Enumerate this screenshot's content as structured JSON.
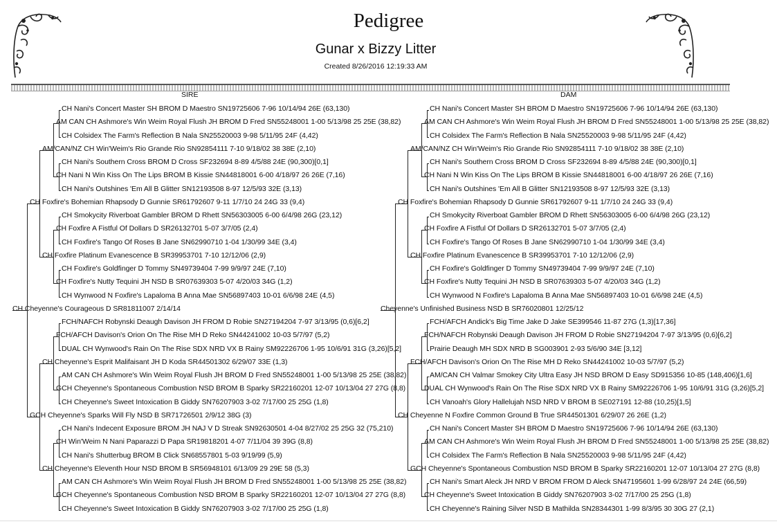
{
  "header": {
    "title": "Pedigree",
    "subtitle": "Gunar x Bizzy Litter",
    "created": "Created 8/26/2016 12:19:33 AM"
  },
  "columns": {
    "sire": "SIRE",
    "dam": "DAM"
  },
  "sire_tree": [
    "CH Nani's Concert Master SH BROM D Maestro SN19725606 7-96 10/14/94 26E (63,130)",
    "AM CAN CH Ashmore's Win Weim Royal Flush JH BROM D Fred SN55248001 1-00 5/13/98 25 25E (38,82)",
    "CH Colsidex The Farm's Reflection B Nala SN25520003 9-98 5/11/95 24F (4,42)",
    "AM/CAN/NZ CH Win'Weim's Rio Grande Rio SN92854111 7-10 9/18/02 38 38E (2,10)",
    "CH Nani's Southern Cross BROM D Cross SF232694 8-89 4/5/88 24E (90,300)[0,1]",
    "CH Nani N Win Kiss On The Lips BROM B Kissie SN44818001 6-00 4/18/97 26 26E (7,16)",
    "CH Nani's Outshines 'Em All B Glitter SN12193508 8-97 12/5/93 32E (3,13)",
    "CH Foxfire's Bohemian Rhapsody D Gunnie SR61792607 9-11 1/7/10 24 24G 33 (9,4)",
    "CH Smokycity Riverboat Gambler BROM D Rhett SN56303005 6-00 6/4/98 26G (23,12)",
    "CH Foxfire A Fistful Of Dollars D SR26132701 5-07 3/7/05 (2,4)",
    "CH Foxfire's Tango Of Roses B Jane SN62990710 1-04 1/30/99 34E (3,4)",
    "CH Foxfire Platinum Evanescence B SR39953701 7-10 12/12/06 (2,9)",
    "CH Foxfire's Goldfinger D Tommy SN49739404 7-99 9/9/97 24E (7,10)",
    "CH Foxfire's Nutty Tequini JH NSD B SR07639303 5-07 4/20/03 34G (1,2)",
    "CH Wynwood N Foxfire's Lapaloma B Anna Mae SN56897403 10-01 6/6/98 24E (4,5)",
    "CH Cheyenne's Courageous D SR81811007 2/14/14",
    "FCH/NAFCH Robynski Deaugh Davison JH FROM D Robie SN27194204 7-97 3/13/95 (0,6)[6,2]",
    "FCH/AFCH Davison's Orion On The Rise MH D Reko SN44241002 10-03 5/7/97 (5,2)",
    "DUAL CH Wynwood's Rain On The Rise SDX NRD VX B Rainy SM92226706 1-95 10/6/91 31G (3,26)[5,2]",
    "CH Cheyenne's Esprit Malifaisant JH D Koda SR44501302 6/29/07 33E (1,3)",
    "AM CAN CH Ashmore's Win Weim Royal Flush JH BROM D Fred SN55248001 1-00 5/13/98 25 25E (38,82)",
    "GCH Cheyenne's Spontaneous Combustion NSD BROM B Sparky SR22160201 12-07 10/13/04 27 27G (8,8)",
    "CH Cheyenne's Sweet Intoxication B Giddy SN76207903 3-02 7/17/00 25 25G (1,8)",
    "GCH Cheyenne's Sparks Will Fly NSD B SR71726501 2/9/12 38G (3)",
    "CH Nani's Indecent Exposure BROM JH NAJ V D Streak SN92630501 4-04 8/27/02 25 25G 32 (75,210)",
    "CH Win'Weim N Nani Paparazzi D Papa SR19818201 4-07 7/11/04 39 39G (8,8)",
    "CH Nani's Shutterbug BROM B Click SN68557801 5-03 9/19/99 (5,9)",
    "CH Cheyenne's Eleventh Hour NSD BROM B SR56948101 6/13/09 29 29E 58 (5,3)",
    "AM CAN CH Ashmore's Win Weim Royal Flush JH BROM D Fred SN55248001 1-00 5/13/98 25 25E (38,82)",
    "GCH Cheyenne's Spontaneous Combustion NSD BROM B Sparky SR22160201 12-07 10/13/04 27 27G (8,8)",
    "CH Cheyenne's Sweet Intoxication B Giddy SN76207903 3-02 7/17/00 25 25G (1,8)"
  ],
  "dam_tree": [
    "CH Nani's Concert Master SH BROM D Maestro SN19725606 7-96 10/14/94 26E (63,130)",
    "AM CAN CH Ashmore's Win Weim Royal Flush JH BROM D Fred SN55248001 1-00 5/13/98 25 25E (38,82)",
    "CH Colsidex The Farm's Reflection B Nala SN25520003 9-98 5/11/95 24F (4,42)",
    "AM/CAN/NZ CH Win'Weim's Rio Grande Rio SN92854111 7-10 9/18/02 38 38E (2,10)",
    "CH Nani's Southern Cross BROM D Cross SF232694 8-89 4/5/88 24E (90,300)[0,1]",
    "CH Nani N Win Kiss On The Lips BROM B Kissie SN44818001 6-00 4/18/97 26 26E (7,16)",
    "CH Nani's Outshines 'Em All B Glitter SN12193508 8-97 12/5/93 32E (3,13)",
    "CH Foxfire's Bohemian Rhapsody D Gunnie SR61792607 9-11 1/7/10 24 24G 33 (9,4)",
    "CH Smokycity Riverboat Gambler BROM D Rhett SN56303005 6-00 6/4/98 26G (23,12)",
    "CH Foxfire A Fistful Of Dollars D SR26132701 5-07 3/7/05 (2,4)",
    "CH Foxfire's Tango Of Roses B Jane SN62990710 1-04 1/30/99 34E (3,4)",
    "CH Foxfire Platinum Evanescence B SR39953701 7-10 12/12/06 (2,9)",
    "CH Foxfire's Goldfinger D Tommy SN49739404 7-99 9/9/97 24E (7,10)",
    "CH Foxfire's Nutty Tequini JH NSD B SR07639303 5-07 4/20/03 34G (1,2)",
    "CH Wynwood N Foxfire's Lapaloma B Anna Mae SN56897403 10-01 6/6/98 24E (4,5)",
    "Cheyenne's Unfinished Business NSD B SR76020801 12/25/12",
    "FCH/AFCH Andick's Big Time Jake D Jake SE399546 11-87 27G (1,3)[17,36]",
    "FCH/NAFCH Robynski Deaugh Davison JH FROM D Robie SN27194204 7-97 3/13/95 (0,6)[6,2]",
    "Prairie Deaugh MH SDX NRD B SG003901 2-93 5/6/90 34E [3,12]",
    "FCH/AFCH Davison's Orion On The Rise MH D Reko SN44241002 10-03 5/7/97 (5,2)",
    "AM/CAN CH Valmar Smokey City Ultra Easy JH NSD BROM D Easy SD915356 10-85 (148,406)[1,6]",
    "DUAL CH Wynwood's Rain On The Rise SDX NRD VX B Rainy SM92226706 1-95 10/6/91 31G (3,26)[5,2]",
    "CH Vanoah's Glory Hallelujah NSD NRD V BROM B SE027191 12-88 (10,25)[1,5]",
    "CH Cheyenne N Foxfire Common Ground B True SR44501301 6/29/07 26 26E (1,2)",
    "CH Nani's Concert Master SH BROM D Maestro SN19725606 7-96 10/14/94 26E (63,130)",
    "AM CAN CH Ashmore's Win Weim Royal Flush JH BROM D Fred SN55248001 1-00 5/13/98 25 25E (38,82)",
    "CH Colsidex The Farm's Reflection B Nala SN25520003 9-98 5/11/95 24F (4,42)",
    "GCH Cheyenne's Spontaneous Combustion NSD BROM B Sparky SR22160201 12-07 10/13/04 27 27G (8,8)",
    "CH Nani's Smart Aleck JH NRD V BROM FROM D Aleck SN47195601 1-99 6/28/97 24 24E (66,59)",
    "CH Cheyenne's Sweet Intoxication B Giddy SN76207903 3-02 7/17/00 25 25G (1,8)",
    "CH Cheyenne's Raining Silver NSD B Mathilda SN28344301 1-99 8/3/95 30 30G 27 (2,1)"
  ]
}
